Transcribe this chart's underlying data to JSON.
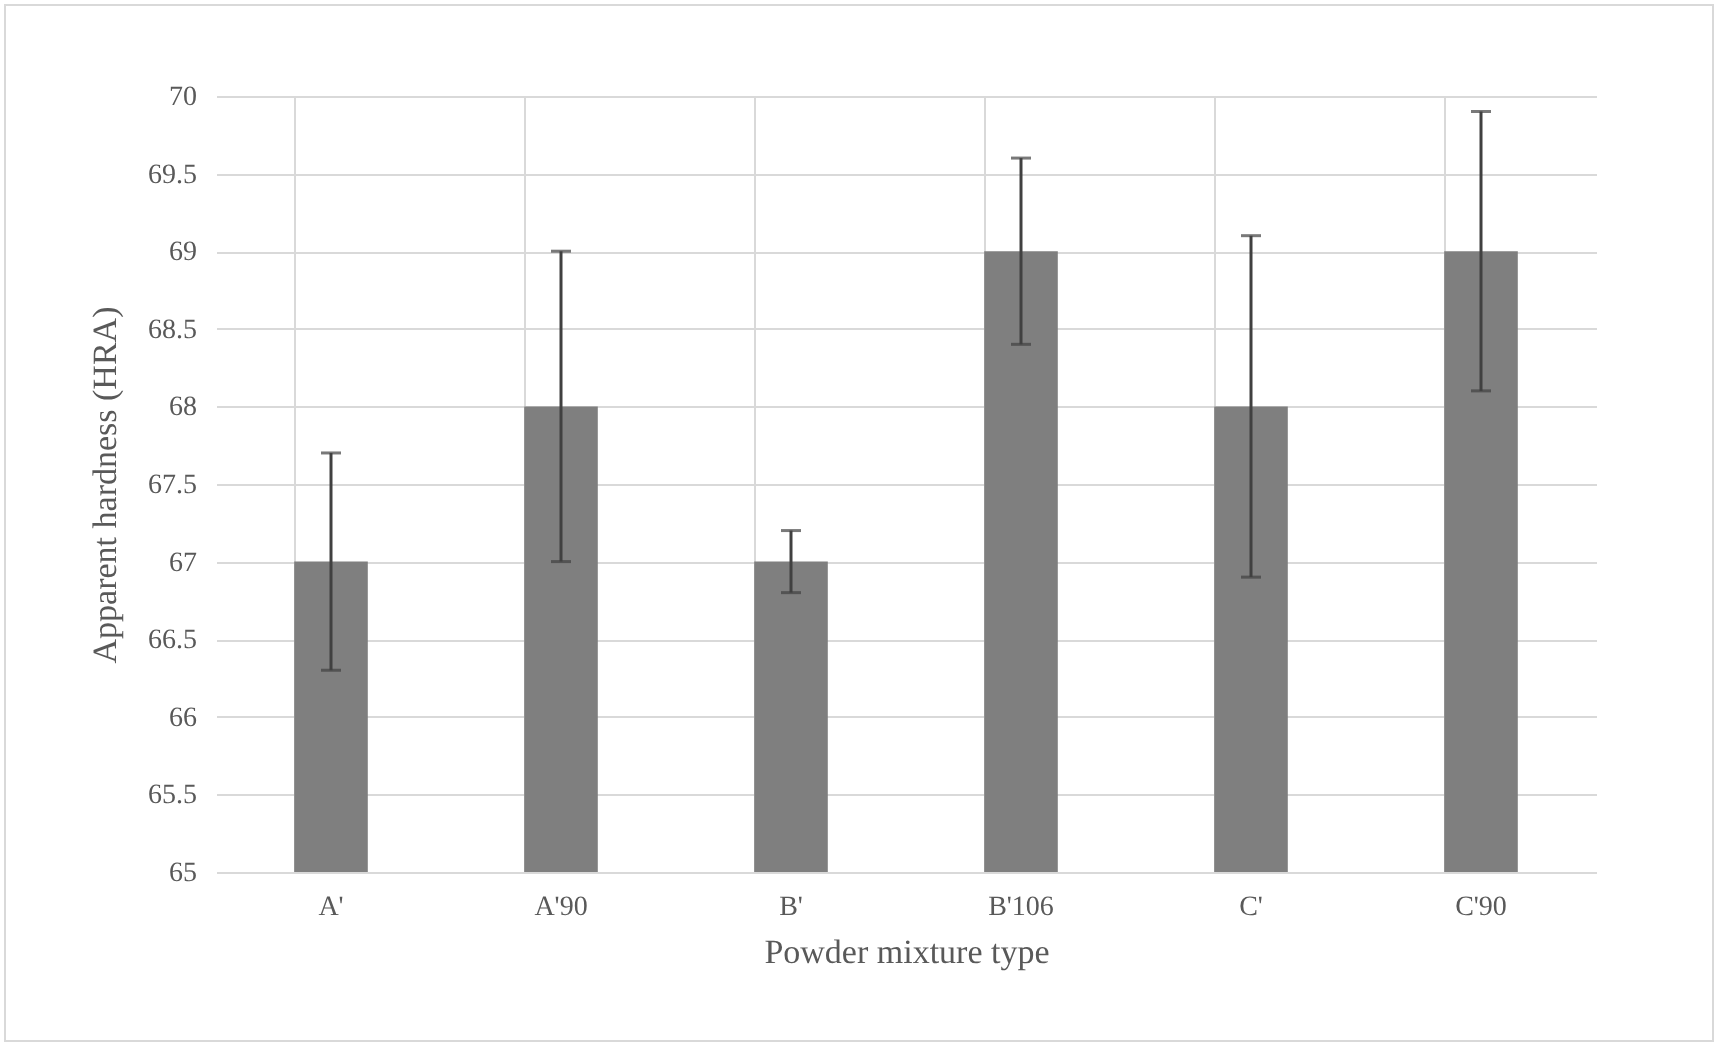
{
  "chart_data": {
    "type": "bar",
    "xlabel": "Powder mixture type",
    "ylabel": "Apparent  hardness (HRA)",
    "categories": [
      "A'",
      "A'90",
      "B'",
      "B'106",
      "C'",
      "C'90"
    ],
    "series": [
      {
        "color": "#7f7f7f",
        "values": [
          67,
          68,
          67,
          69,
          68,
          69
        ],
        "errors": [
          [
            66.3,
            67.7
          ],
          [
            67,
            69
          ],
          [
            66.8,
            67.2
          ],
          [
            68.4,
            69.6
          ],
          [
            66.9,
            69.1
          ],
          [
            68.1,
            69.9
          ]
        ]
      }
    ],
    "ylim": [
      65,
      70
    ],
    "yticks": [
      65,
      65.5,
      66,
      66.5,
      67,
      67.5,
      68,
      68.5,
      69,
      69.5,
      70
    ],
    "grid": true
  }
}
